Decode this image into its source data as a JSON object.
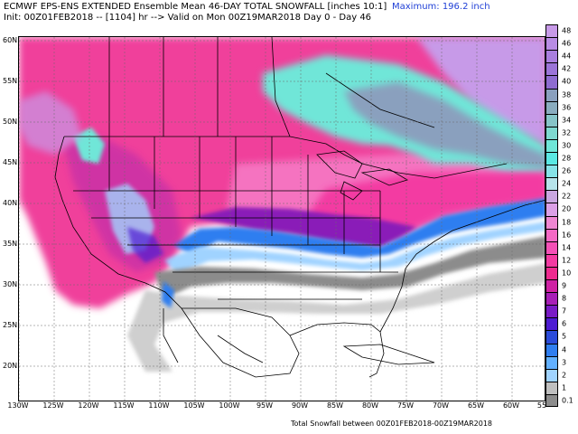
{
  "header": {
    "line1": "ECMWF EPS-ENS EXTENDED Ensemble Mean 46-DAY TOTAL SNOWFALL [inches 10:1]",
    "line2": "Init: 00Z01FEB2018 -- [1104] hr --> Valid on Mon 00Z19MAR2018  Day 0 - Day 46",
    "maximum": "Maximum: 196.2 inch"
  },
  "footer": "Total Snowfall between 00Z01FEB2018-00Z19MAR2018",
  "map": {
    "lat_labels": [
      "60N",
      "55N",
      "50N",
      "45N",
      "40N",
      "35N",
      "30N",
      "25N",
      "20N"
    ],
    "lon_labels": [
      "130W",
      "125W",
      "120W",
      "115W",
      "110W",
      "105W",
      "100W",
      "95W",
      "90W",
      "85W",
      "80W",
      "75W",
      "70W",
      "65W",
      "60W",
      "55"
    ]
  },
  "legend": {
    "labels": [
      "48",
      "46",
      "44",
      "42",
      "40",
      "38",
      "36",
      "34",
      "32",
      "30",
      "28",
      "26",
      "24",
      "22",
      "20",
      "18",
      "16",
      "14",
      "12",
      "10",
      "9",
      "8",
      "7",
      "6",
      "5",
      "4",
      "3",
      "2",
      "1",
      "0.1"
    ],
    "colors": [
      "#c79ae8",
      "#b88ce4",
      "#a97fdf",
      "#9b74d8",
      "#8e6cd0",
      "#8aa0be",
      "#8aacbf",
      "#86c4c8",
      "#7ed8d0",
      "#6fe6d8",
      "#5ae8e3",
      "#86e3e8",
      "#b6e3ea",
      "#c9a7e0",
      "#dba0e6",
      "#ee86d2",
      "#f569c5",
      "#f450b6",
      "#f33aa2",
      "#ee2a8f",
      "#cf22a4",
      "#a81fb7",
      "#7a1bc6",
      "#4d1bd2",
      "#2b4bd9",
      "#2f7ef0",
      "#62b0ff",
      "#a0d3ff",
      "#bfbfbf",
      "#8c8c8c"
    ]
  }
}
